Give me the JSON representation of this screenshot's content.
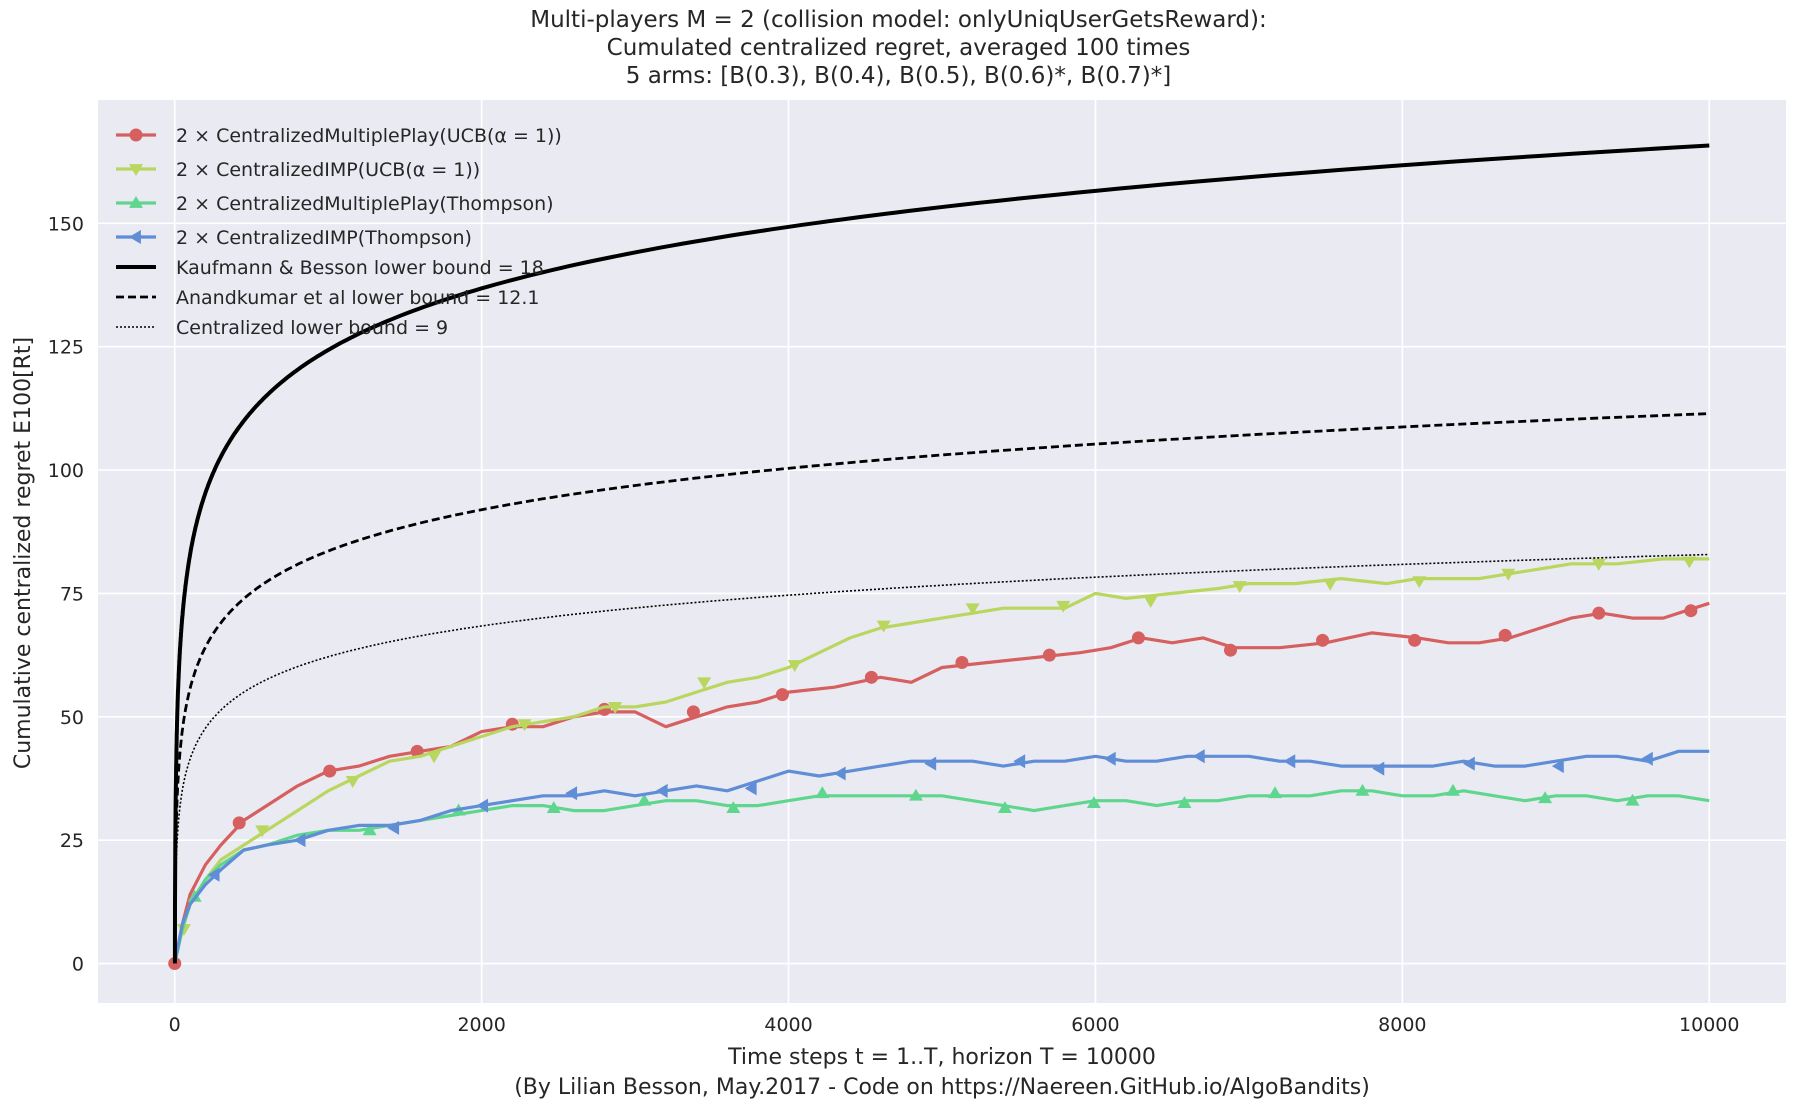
{
  "chart_data": {
    "type": "line",
    "title_lines": [
      "Multi-players M = 2 (collision model: onlyUniqUserGetsReward):",
      "Cumulated centralized regret, averaged 100 times",
      "5 arms: [B(0.3), B(0.4), B(0.5), B(0.6)*, B(0.7)*]"
    ],
    "xlabel": "Time steps t = 1..T, horizon T = 10000",
    "caption": "(By Lilian Besson, May.2017 - Code on https://Naereen.GitHub.io/AlgoBandits)",
    "ylabel": "Cumulative centralized regret E100[Rt]",
    "xlim": [
      -500,
      10500
    ],
    "ylim": [
      -8,
      175
    ],
    "xticks": [
      0,
      2000,
      4000,
      6000,
      8000,
      10000
    ],
    "yticks": [
      0,
      25,
      50,
      75,
      100,
      125,
      150
    ],
    "grid": true,
    "background": "#eaeaf2",
    "legend_position": "top-left",
    "series": [
      {
        "name": "2 × CentralizedMultiplePlay(UCB(α = 1))",
        "color": "#d65f5f",
        "marker": "circle",
        "style": "solid",
        "x": [
          0,
          50,
          100,
          200,
          300,
          450,
          600,
          800,
          1000,
          1200,
          1400,
          1600,
          1800,
          2000,
          2200,
          2400,
          2600,
          2800,
          3000,
          3200,
          3400,
          3600,
          3800,
          4000,
          4300,
          4600,
          4800,
          5000,
          5300,
          5600,
          5900,
          6100,
          6300,
          6500,
          6700,
          6900,
          7200,
          7500,
          7800,
          8100,
          8300,
          8500,
          8700,
          8900,
          9100,
          9300,
          9500,
          9700,
          9900,
          10000
        ],
        "y": [
          0,
          8,
          14,
          20,
          24,
          29,
          32,
          36,
          39,
          40,
          42,
          43,
          44,
          47,
          48,
          48,
          50,
          51,
          51,
          48,
          50,
          52,
          53,
          55,
          56,
          58,
          57,
          60,
          61,
          62,
          63,
          64,
          66,
          65,
          66,
          64,
          64,
          65,
          67,
          66,
          65,
          65,
          66,
          68,
          70,
          71,
          70,
          70,
          72,
          73
        ],
        "marker_x": [
          0,
          420,
          1010,
          1580,
          2200,
          2800,
          3380,
          3960,
          4540,
          5130,
          5700,
          6280,
          6880,
          7480,
          8080,
          8670,
          9280,
          9880
        ],
        "marker_y": [
          0,
          28.5,
          39,
          43,
          48.5,
          51.5,
          51,
          54.5,
          58,
          61,
          62.5,
          66,
          63.5,
          65.5,
          65.5,
          66.5,
          71,
          71.5
        ]
      },
      {
        "name": "2 × CentralizedIMP(UCB(α = 1))",
        "color": "#b9d65f",
        "marker": "triangle-down",
        "style": "solid",
        "x": [
          0,
          50,
          100,
          200,
          300,
          450,
          600,
          800,
          1000,
          1200,
          1400,
          1600,
          1800,
          2000,
          2200,
          2400,
          2600,
          2800,
          3000,
          3200,
          3400,
          3600,
          3800,
          4000,
          4200,
          4400,
          4600,
          4800,
          5000,
          5200,
          5400,
          5600,
          5800,
          6000,
          6200,
          6500,
          6800,
          7000,
          7300,
          7600,
          7900,
          8100,
          8300,
          8500,
          8700,
          8900,
          9100,
          9400,
          9700,
          10000
        ],
        "y": [
          0,
          7,
          12,
          17,
          21,
          24,
          27,
          31,
          35,
          38,
          41,
          42,
          44,
          46,
          48,
          49,
          50,
          52,
          52,
          53,
          55,
          57,
          58,
          60,
          63,
          66,
          68,
          69,
          70,
          71,
          72,
          72,
          72,
          75,
          74,
          75,
          76,
          77,
          77,
          78,
          77,
          78,
          78,
          78,
          79,
          80,
          81,
          81,
          82,
          82
        ],
        "marker_x": [
          60,
          570,
          1160,
          1690,
          2280,
          2870,
          3450,
          4040,
          4620,
          5200,
          5790,
          6360,
          6940,
          7530,
          8110,
          8690,
          9280,
          9870
        ],
        "marker_y": [
          7,
          27,
          37,
          42,
          48.5,
          52,
          57,
          60.5,
          68.5,
          72,
          72.5,
          73.5,
          76.5,
          77,
          77.5,
          79,
          81,
          81.5
        ]
      },
      {
        "name": "2 × CentralizedMultiplePlay(Thompson)",
        "color": "#5fd68d",
        "marker": "triangle-up",
        "style": "solid",
        "x": [
          0,
          50,
          100,
          200,
          300,
          450,
          600,
          800,
          1000,
          1200,
          1400,
          1600,
          1800,
          2000,
          2200,
          2400,
          2600,
          2800,
          3000,
          3200,
          3400,
          3600,
          3800,
          4000,
          4200,
          4400,
          4600,
          4800,
          5000,
          5200,
          5400,
          5600,
          5800,
          6000,
          6200,
          6400,
          6600,
          6800,
          7000,
          7200,
          7400,
          7600,
          7800,
          8000,
          8200,
          8400,
          8600,
          8800,
          9000,
          9200,
          9400,
          9600,
          9800,
          10000
        ],
        "y": [
          0,
          7,
          12,
          17,
          20,
          23,
          24,
          26,
          27,
          27,
          28,
          29,
          30,
          31,
          32,
          32,
          31,
          31,
          32,
          33,
          33,
          32,
          32,
          33,
          34,
          34,
          34,
          34,
          34,
          33,
          32,
          31,
          32,
          33,
          33,
          32,
          33,
          33,
          34,
          34,
          34,
          35,
          35,
          34,
          34,
          35,
          34,
          33,
          34,
          34,
          33,
          34,
          34,
          33
        ],
        "marker_x": [
          130,
          1270,
          1850,
          2470,
          3060,
          3640,
          4220,
          4830,
          5410,
          5990,
          6580,
          7170,
          7740,
          8330,
          8930,
          9500
        ],
        "marker_y": [
          13.5,
          27,
          31,
          31.5,
          33,
          31.5,
          34.5,
          34,
          31.5,
          32.5,
          32.5,
          34.5,
          35,
          35,
          33.5,
          33
        ]
      },
      {
        "name": "2 × CentralizedIMP(Thompson)",
        "color": "#5f8dd6",
        "marker": "triangle-left",
        "style": "solid",
        "x": [
          0,
          50,
          100,
          200,
          300,
          450,
          600,
          800,
          1000,
          1200,
          1400,
          1600,
          1800,
          2000,
          2200,
          2400,
          2600,
          2800,
          3000,
          3200,
          3400,
          3600,
          3800,
          4000,
          4200,
          4400,
          4600,
          4800,
          5000,
          5200,
          5400,
          5600,
          5800,
          6000,
          6200,
          6400,
          6600,
          6800,
          7000,
          7200,
          7400,
          7600,
          7800,
          8000,
          8200,
          8400,
          8600,
          8800,
          9000,
          9200,
          9400,
          9600,
          9800,
          10000
        ],
        "y": [
          0,
          8,
          12,
          16,
          19,
          23,
          24,
          25,
          27,
          28,
          28,
          29,
          31,
          32,
          33,
          34,
          34,
          35,
          34,
          35,
          36,
          35,
          37,
          39,
          38,
          39,
          40,
          41,
          41,
          41,
          40,
          41,
          41,
          42,
          41,
          41,
          42,
          42,
          42,
          41,
          41,
          40,
          40,
          40,
          40,
          41,
          40,
          40,
          41,
          42,
          42,
          41,
          43,
          43
        ],
        "marker_x": [
          260,
          820,
          1430,
          2010,
          2590,
          3180,
          3760,
          4340,
          4930,
          5510,
          6100,
          6680,
          7270,
          7850,
          8440,
          9020,
          9600
        ],
        "marker_y": [
          18,
          25,
          27.5,
          32,
          34.5,
          35,
          35.5,
          38.5,
          40.5,
          41,
          41.5,
          42,
          41,
          39.5,
          40.5,
          40,
          41.5
        ]
      },
      {
        "name": "Kaufmann & Besson lower bound = 18",
        "color": "#000000",
        "style": "solid-thick",
        "coef": 18,
        "y_values_at": {
          "x": [
            100,
            1000,
            2000,
            4000,
            6000,
            8000,
            10000
          ],
          "y": [
            82.9,
            124.3,
            136.8,
            149.3,
            156.6,
            161.8,
            165.8
          ]
        }
      },
      {
        "name": "Anandkumar et al lower bound = 12.1",
        "color": "#000000",
        "style": "dashed",
        "coef": 12.1,
        "y_values_at": {
          "x": [
            100,
            1000,
            2000,
            4000,
            6000,
            8000,
            10000
          ],
          "y": [
            55.7,
            83.6,
            92.0,
            100.4,
            105.3,
            108.7,
            111.4
          ]
        }
      },
      {
        "name": "Centralized lower bound = 9",
        "color": "#000000",
        "style": "dotted",
        "coef": 9,
        "y_values_at": {
          "x": [
            100,
            1000,
            2000,
            4000,
            6000,
            8000,
            10000
          ],
          "y": [
            41.4,
            62.2,
            68.4,
            74.6,
            78.3,
            80.9,
            82.9
          ]
        }
      }
    ]
  }
}
